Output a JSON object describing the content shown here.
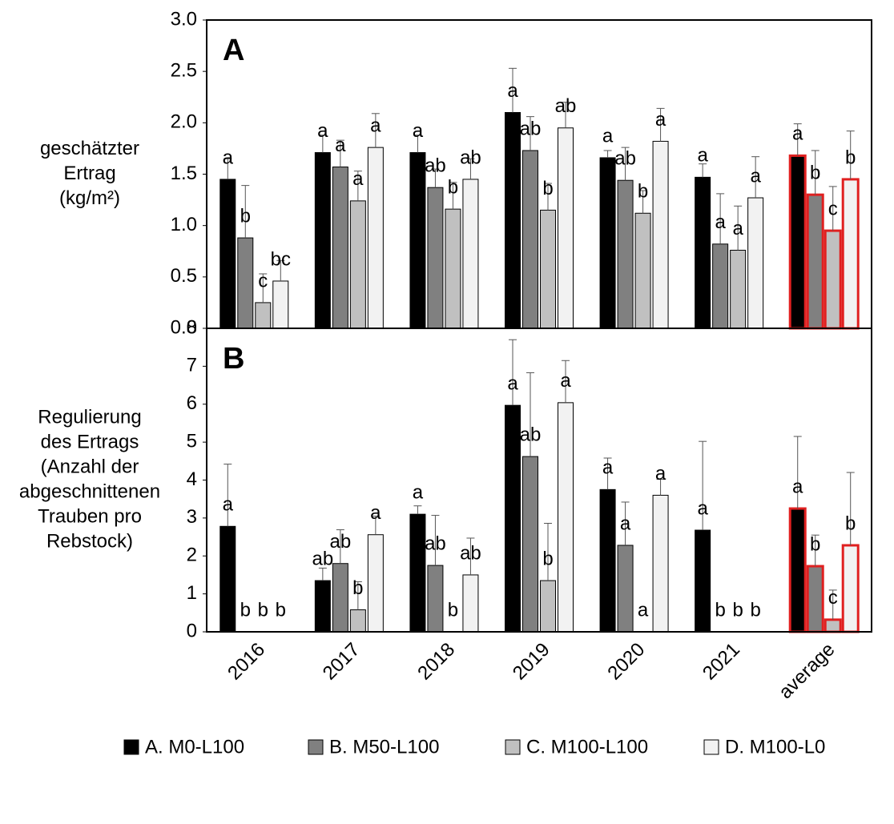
{
  "chart_data": [
    {
      "type": "bar",
      "panel_label": "A",
      "y_label_lines": [
        "geschätzter",
        "Ertrag",
        "(kg/m²)"
      ],
      "ylim": [
        0,
        3
      ],
      "yticks": [
        {
          "value": 0,
          "label": "0.0"
        },
        {
          "value": 0.5,
          "label": "0.5"
        },
        {
          "value": 1,
          "label": "1.0"
        },
        {
          "value": 1.5,
          "label": "1.5"
        },
        {
          "value": 2,
          "label": "2.0"
        },
        {
          "value": 2.5,
          "label": "2.5"
        },
        {
          "value": 3,
          "label": "3.0"
        }
      ],
      "highlight_last": true,
      "highlight_color": "#e02020",
      "series": [
        {
          "color": "#000000",
          "values": [
            1.45,
            1.71,
            1.71,
            2.1,
            1.66,
            1.47,
            1.68
          ],
          "errors": [
            0.2,
            0.17,
            0.17,
            0.43,
            0.07,
            0.13,
            0.31
          ],
          "letters": [
            "a",
            "a",
            "a",
            "a",
            "a",
            "a",
            "a"
          ]
        },
        {
          "color": "#808080",
          "values": [
            0.88,
            1.57,
            1.37,
            1.73,
            1.44,
            0.82,
            1.3
          ],
          "errors": [
            0.51,
            0.26,
            0.18,
            0.33,
            0.32,
            0.49,
            0.43
          ],
          "letters": [
            "b",
            "a",
            "ab",
            "ab",
            "ab",
            "a",
            "b"
          ]
        },
        {
          "color": "#c0c0c0",
          "values": [
            0.25,
            1.24,
            1.16,
            1.15,
            1.12,
            0.76,
            0.95
          ],
          "errors": [
            0.28,
            0.29,
            0.26,
            0.26,
            0.22,
            0.43,
            0.43
          ],
          "letters": [
            "c",
            "a",
            "b",
            "b",
            "b",
            "a",
            "c"
          ]
        },
        {
          "color": "#f2f2f2",
          "values": [
            0.46,
            1.76,
            1.45,
            1.95,
            1.82,
            1.27,
            1.45
          ],
          "errors": [
            0.2,
            0.33,
            0.2,
            0.25,
            0.32,
            0.4,
            0.47
          ],
          "letters": [
            "bc",
            "a",
            "ab",
            "ab",
            "a",
            "a",
            "b"
          ]
        }
      ]
    },
    {
      "type": "bar",
      "panel_label": "B",
      "y_label_lines": [
        "Regulierung",
        "des Ertrags",
        "(Anzahl der",
        "abgeschnittenen",
        "Trauben pro",
        "Rebstock)"
      ],
      "categories": [
        "2016",
        "2017",
        "2018",
        "2019",
        "2020",
        "2021",
        "average"
      ],
      "ylim": [
        0,
        8
      ],
      "yticks": [
        0,
        1,
        2,
        3,
        4,
        5,
        6,
        7,
        8
      ],
      "highlight_last": true,
      "highlight_color": "#e02020",
      "series": [
        {
          "name": "A. M0-L100",
          "color": "#000000",
          "values": [
            2.78,
            1.35,
            3.1,
            5.97,
            3.75,
            2.68,
            3.25
          ],
          "errors": [
            1.64,
            0.33,
            0.22,
            1.73,
            0.83,
            2.34,
            1.9
          ],
          "letters": [
            "a",
            "ab",
            "a",
            "a",
            "a",
            "a",
            "a"
          ]
        },
        {
          "name": "B. M50-L100",
          "color": "#808080",
          "values": [
            0,
            1.8,
            1.75,
            4.62,
            2.28,
            0,
            1.73
          ],
          "errors": [
            0,
            0.89,
            1.32,
            2.21,
            1.14,
            0,
            0.82
          ],
          "letters": [
            "b",
            "ab",
            "ab",
            "ab",
            "a",
            "b",
            "b"
          ]
        },
        {
          "name": "C. M100-L100",
          "color": "#c0c0c0",
          "values": [
            0,
            0.58,
            0,
            1.35,
            0,
            0,
            0.32
          ],
          "errors": [
            0,
            0.74,
            0,
            1.51,
            0,
            0,
            0.78
          ],
          "letters": [
            "b",
            "b",
            "b",
            "b",
            "a",
            "b",
            "c"
          ]
        },
        {
          "name": "D. M100-L0",
          "color": "#f2f2f2",
          "values": [
            0,
            2.56,
            1.5,
            6.04,
            3.6,
            0,
            2.28
          ],
          "errors": [
            0,
            0.49,
            0.97,
            1.11,
            0.42,
            0,
            1.92
          ],
          "letters": [
            "b",
            "a",
            "ab",
            "a",
            "a",
            "b",
            "b"
          ]
        }
      ]
    }
  ]
}
